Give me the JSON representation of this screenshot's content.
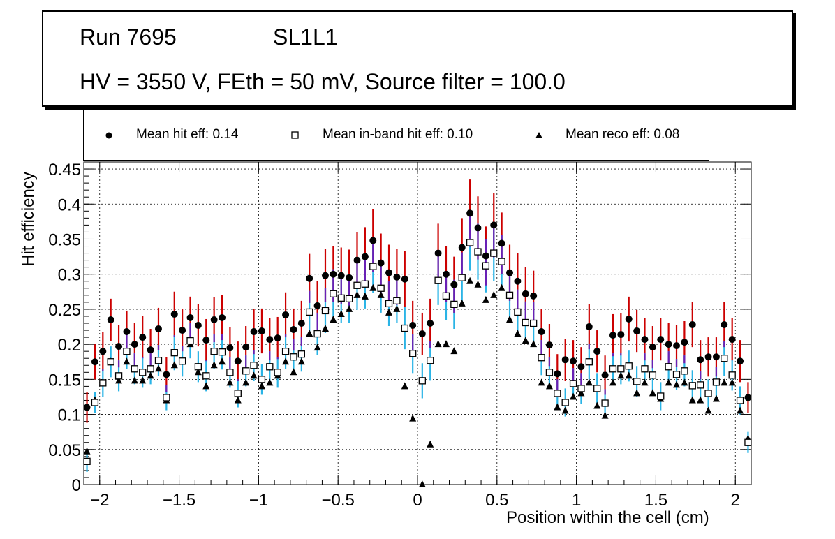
{
  "header": {
    "run_label": "Run 7695",
    "layer_label": "SL1L1",
    "conditions": "HV = 3550 V, FEth = 50 mV, Source filter = 100.0"
  },
  "colors": {
    "hit_error": "#cc0000",
    "inband_error": "#2ab4e6",
    "overlap_error": "#6a1fb5",
    "marker": "#000000",
    "inband_fill": "#ffffff"
  },
  "chart_data": {
    "type": "scatter",
    "xlabel": "Position within the cell (cm)",
    "ylabel": "Hit efficiency",
    "xlim": [
      -2.1,
      2.1
    ],
    "ylim": [
      0,
      0.46
    ],
    "xticks": [
      -2,
      -1.5,
      -1,
      -0.5,
      0,
      0.5,
      1,
      1.5,
      2
    ],
    "xtick_labels": [
      "−2",
      "−1.5",
      "−1",
      "−0.5",
      "0",
      "0.5",
      "1",
      "1.5",
      "2"
    ],
    "yticks": [
      0,
      0.05,
      0.1,
      0.15,
      0.2,
      0.25,
      0.3,
      0.35,
      0.4,
      0.45
    ],
    "ytick_labels": [
      "0",
      "0.05",
      "0.1",
      "0.15",
      "0.2",
      "0.25",
      "0.3",
      "0.35",
      "0.4",
      "0.45"
    ],
    "grid": true,
    "legend": [
      {
        "marker": "circle",
        "label": "Mean hit  eff: 0.14"
      },
      {
        "marker": "open-square",
        "label": "Mean in-band hit eff: 0.10"
      },
      {
        "marker": "triangle",
        "label": "Mean reco eff: 0.08"
      }
    ],
    "x": [
      -2.08,
      -2.03,
      -1.98,
      -1.93,
      -1.88,
      -1.83,
      -1.78,
      -1.73,
      -1.68,
      -1.63,
      -1.58,
      -1.53,
      -1.48,
      -1.43,
      -1.38,
      -1.33,
      -1.28,
      -1.23,
      -1.18,
      -1.13,
      -1.08,
      -1.03,
      -0.98,
      -0.93,
      -0.88,
      -0.83,
      -0.78,
      -0.73,
      -0.68,
      -0.63,
      -0.58,
      -0.53,
      -0.48,
      -0.43,
      -0.38,
      -0.33,
      -0.28,
      -0.23,
      -0.18,
      -0.13,
      -0.08,
      -0.03,
      0.03,
      0.08,
      0.13,
      0.18,
      0.23,
      0.28,
      0.33,
      0.38,
      0.43,
      0.48,
      0.53,
      0.58,
      0.63,
      0.68,
      0.73,
      0.78,
      0.83,
      0.88,
      0.93,
      0.98,
      1.03,
      1.08,
      1.13,
      1.18,
      1.23,
      1.28,
      1.33,
      1.38,
      1.43,
      1.48,
      1.53,
      1.58,
      1.63,
      1.68,
      1.73,
      1.78,
      1.83,
      1.88,
      1.93,
      1.98,
      2.03,
      2.08
    ],
    "series": [
      {
        "name": "Mean hit  eff: 0.14",
        "marker": "circle",
        "values": [
          0.11,
          0.175,
          0.19,
          0.235,
          0.197,
          0.218,
          0.2,
          0.21,
          0.192,
          0.222,
          0.157,
          0.243,
          0.22,
          0.238,
          0.227,
          0.206,
          0.235,
          0.238,
          0.195,
          0.176,
          0.196,
          0.218,
          0.219,
          0.207,
          0.209,
          0.242,
          0.221,
          0.23,
          0.294,
          0.255,
          0.298,
          0.3,
          0.298,
          0.295,
          0.32,
          0.325,
          0.348,
          0.316,
          0.302,
          0.296,
          0.293,
          0.227,
          0.215,
          0.23,
          0.33,
          0.3,
          0.285,
          0.338,
          0.387,
          0.366,
          0.326,
          0.37,
          0.344,
          0.302,
          0.29,
          0.272,
          0.269,
          0.218,
          0.199,
          0.158,
          0.178,
          0.176,
          0.168,
          0.225,
          0.19,
          0.156,
          0.213,
          0.214,
          0.236,
          0.219,
          0.207,
          0.196,
          0.207,
          0.2,
          0.198,
          0.203,
          0.228,
          0.178,
          0.182,
          0.182,
          0.228,
          0.207,
          0.176,
          0.124
        ],
        "errors": [
          0.022,
          0.025,
          0.028,
          0.03,
          0.03,
          0.03,
          0.03,
          0.03,
          0.03,
          0.03,
          0.025,
          0.032,
          0.03,
          0.03,
          0.03,
          0.03,
          0.032,
          0.032,
          0.03,
          0.028,
          0.03,
          0.032,
          0.032,
          0.03,
          0.03,
          0.032,
          0.03,
          0.032,
          0.035,
          0.035,
          0.038,
          0.04,
          0.04,
          0.04,
          0.04,
          0.042,
          0.045,
          0.042,
          0.04,
          0.04,
          0.04,
          0.035,
          0.03,
          0.035,
          0.042,
          0.04,
          0.04,
          0.042,
          0.048,
          0.045,
          0.042,
          0.046,
          0.044,
          0.04,
          0.04,
          0.038,
          0.036,
          0.032,
          0.03,
          0.028,
          0.03,
          0.03,
          0.028,
          0.032,
          0.03,
          0.028,
          0.03,
          0.03,
          0.032,
          0.03,
          0.03,
          0.03,
          0.03,
          0.03,
          0.03,
          0.03,
          0.032,
          0.028,
          0.028,
          0.028,
          0.032,
          0.03,
          0.03,
          0.022
        ]
      },
      {
        "name": "Mean in-band hit eff: 0.10",
        "marker": "open-square",
        "values": [
          0.033,
          0.117,
          0.145,
          0.175,
          0.155,
          0.19,
          0.165,
          0.16,
          0.165,
          0.177,
          0.124,
          0.188,
          0.176,
          0.205,
          0.168,
          0.155,
          0.19,
          0.189,
          0.16,
          0.13,
          0.162,
          0.17,
          0.15,
          0.168,
          0.16,
          0.19,
          0.182,
          0.186,
          0.246,
          0.215,
          0.248,
          0.272,
          0.266,
          0.265,
          0.284,
          0.286,
          0.311,
          0.28,
          0.258,
          0.262,
          0.223,
          0.187,
          0.148,
          0.177,
          0.291,
          0.269,
          0.257,
          0.295,
          0.345,
          0.332,
          0.312,
          0.33,
          0.318,
          0.27,
          0.246,
          0.231,
          0.23,
          0.181,
          0.16,
          0.13,
          0.117,
          0.144,
          0.137,
          0.175,
          0.137,
          0.116,
          0.165,
          0.165,
          0.169,
          0.147,
          0.165,
          0.156,
          0.126,
          0.168,
          0.157,
          0.162,
          0.141,
          0.142,
          0.13,
          0.146,
          0.18,
          0.156,
          0.12,
          0.06
        ],
        "errors": [
          0.015,
          0.015,
          0.02,
          0.022,
          0.022,
          0.025,
          0.022,
          0.022,
          0.022,
          0.022,
          0.018,
          0.025,
          0.022,
          0.025,
          0.022,
          0.022,
          0.025,
          0.025,
          0.022,
          0.02,
          0.022,
          0.022,
          0.022,
          0.022,
          0.022,
          0.025,
          0.025,
          0.025,
          0.03,
          0.03,
          0.032,
          0.035,
          0.035,
          0.035,
          0.035,
          0.035,
          0.038,
          0.035,
          0.032,
          0.032,
          0.03,
          0.028,
          0.025,
          0.028,
          0.035,
          0.035,
          0.035,
          0.036,
          0.04,
          0.04,
          0.038,
          0.04,
          0.038,
          0.035,
          0.032,
          0.03,
          0.03,
          0.025,
          0.022,
          0.02,
          0.02,
          0.022,
          0.022,
          0.025,
          0.022,
          0.02,
          0.022,
          0.022,
          0.022,
          0.022,
          0.022,
          0.022,
          0.02,
          0.022,
          0.022,
          0.022,
          0.022,
          0.02,
          0.02,
          0.022,
          0.025,
          0.022,
          0.02,
          0.015
        ]
      },
      {
        "name": "Mean reco eff: 0.08",
        "marker": "triangle",
        "values": [
          0.047,
          0.12,
          0.145,
          0.175,
          0.148,
          0.175,
          0.148,
          0.148,
          0.155,
          0.165,
          0.12,
          0.17,
          0.175,
          0.2,
          0.16,
          0.14,
          0.17,
          0.175,
          0.145,
          0.12,
          0.145,
          0.155,
          0.14,
          0.145,
          0.155,
          0.175,
          0.16,
          0.175,
          0.215,
          0.195,
          0.222,
          0.235,
          0.243,
          0.25,
          0.27,
          0.268,
          0.28,
          0.27,
          0.245,
          0.25,
          0.14,
          0.094,
          0.0,
          0.057,
          0.2,
          0.2,
          0.19,
          0.258,
          0.29,
          0.285,
          0.263,
          0.27,
          0.28,
          0.235,
          0.215,
          0.205,
          0.2,
          0.145,
          0.14,
          0.11,
          0.105,
          0.125,
          0.13,
          0.145,
          0.112,
          0.098,
          0.145,
          0.155,
          0.155,
          0.13,
          0.145,
          0.13,
          0.122,
          0.145,
          0.142,
          0.145,
          0.12,
          0.12,
          0.105,
          0.122,
          0.145,
          0.145,
          0.105,
          0.065
        ],
        "errors": []
      }
    ]
  }
}
